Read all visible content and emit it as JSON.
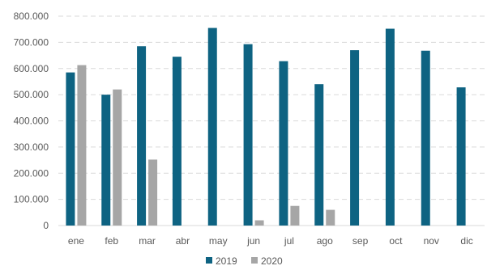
{
  "chart_data": {
    "type": "bar",
    "title": "",
    "xlabel": "",
    "ylabel": "",
    "categories": [
      "ene",
      "feb",
      "mar",
      "abr",
      "may",
      "jun",
      "jul",
      "ago",
      "sep",
      "oct",
      "nov",
      "dic"
    ],
    "series": [
      {
        "name": "2019",
        "color": "#0e6382",
        "values": [
          585000,
          500000,
          685000,
          645000,
          755000,
          693000,
          628000,
          540000,
          670000,
          752000,
          668000,
          528000
        ]
      },
      {
        "name": "2020",
        "color": "#a6a6a6",
        "values": [
          613000,
          520000,
          252000,
          0,
          0,
          20000,
          75000,
          60000,
          0,
          0,
          0,
          0
        ]
      }
    ],
    "ylim": [
      0,
      800000
    ],
    "yticks": [
      0,
      100000,
      200000,
      300000,
      400000,
      500000,
      600000,
      700000,
      800000
    ],
    "ytick_labels": [
      "0",
      "100.000",
      "200.000",
      "300.000",
      "400.000",
      "500.000",
      "600.000",
      "700.000",
      "800.000"
    ],
    "grid": true,
    "legend_position": "bottom-center"
  }
}
